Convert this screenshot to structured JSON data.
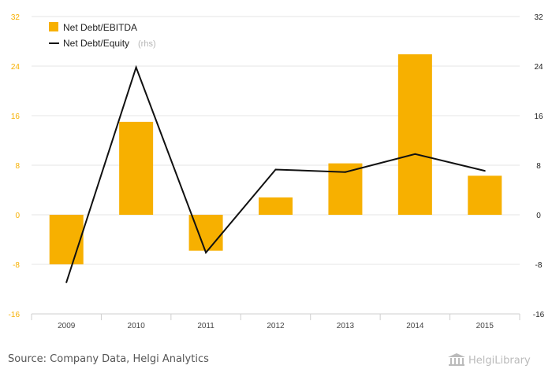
{
  "source": "Source: Company Data, Helgi Analytics",
  "logo": "HelgiLibrary",
  "colors": {
    "bar": "#f7b000",
    "line": "#111111",
    "left_axis": "#f7b000",
    "right_axis": "#222222",
    "grid": "#e6e6e6"
  },
  "chart_data": {
    "type": "bar",
    "categories": [
      "2009",
      "2010",
      "2011",
      "2012",
      "2013",
      "2014",
      "2015"
    ],
    "ylim": [
      -16,
      32
    ],
    "yticks": [
      "32",
      "24",
      "16",
      "8",
      "0",
      "-8",
      "-16"
    ],
    "y2lim": [
      -16,
      32
    ],
    "y2ticks": [
      "32",
      "24",
      "16",
      "8",
      "0",
      "-8",
      "-16"
    ],
    "grid": true,
    "legend_position": "top-left",
    "series": [
      {
        "name": "Net Debt/EBITDA",
        "kind": "bar",
        "axis": "left",
        "values": [
          -8.0,
          15.0,
          -5.8,
          2.8,
          8.3,
          25.9,
          6.3
        ]
      },
      {
        "name": "Net Debt/Equity",
        "name_suffix": "(rhs)",
        "kind": "line",
        "axis": "right",
        "values": [
          -10.9,
          23.8,
          -6.1,
          7.3,
          6.9,
          9.8,
          7.1
        ]
      }
    ]
  }
}
